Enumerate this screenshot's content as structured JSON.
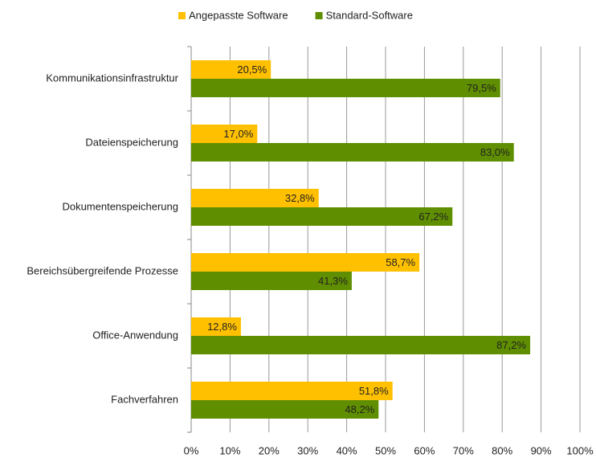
{
  "chart_data": {
    "type": "hbar",
    "categories": [
      "Kommunikationsinfrastruktur",
      "Dateienspeicherung",
      "Dokumentenspeicherung",
      "Bereichsübergreifende Prozesse",
      "Office-Anwendung",
      "Fachverfahren"
    ],
    "series": [
      {
        "name": "Angepasste Software",
        "color": "#ffc000",
        "values": [
          20.5,
          17.0,
          32.8,
          58.7,
          12.8,
          51.8
        ],
        "value_labels": [
          "20,5%",
          "17,0%",
          "32,8%",
          "58,7%",
          "12,8%",
          "51,8%"
        ]
      },
      {
        "name": "Standard-Software",
        "color": "#5f8f00",
        "values": [
          79.5,
          83.0,
          67.2,
          41.3,
          87.2,
          48.2
        ],
        "value_labels": [
          "79,5%",
          "83,0%",
          "67,2%",
          "41,3%",
          "87,2%",
          "48,2%"
        ]
      }
    ],
    "xlim": [
      0,
      100
    ],
    "xticks": [
      {
        "value": 0,
        "label": "0%"
      },
      {
        "value": 10,
        "label": "10%"
      },
      {
        "value": 20,
        "label": "20%"
      },
      {
        "value": 30,
        "label": "30%"
      },
      {
        "value": 40,
        "label": "40%"
      },
      {
        "value": 50,
        "label": "50%"
      },
      {
        "value": 60,
        "label": "60%"
      },
      {
        "value": 70,
        "label": "70%"
      },
      {
        "value": 80,
        "label": "80%"
      },
      {
        "value": 90,
        "label": "90%"
      },
      {
        "value": 100,
        "label": "100%"
      }
    ],
    "grid": true,
    "legend": "top"
  }
}
